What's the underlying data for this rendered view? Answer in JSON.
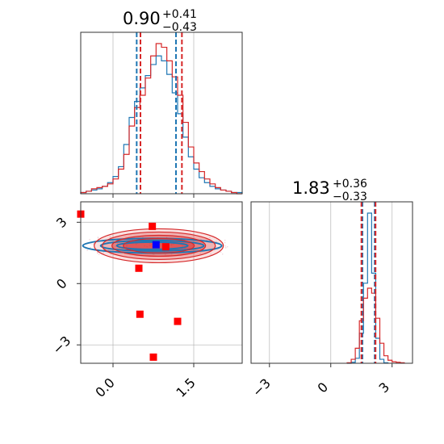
{
  "chart_data": [
    {
      "type": "histogram",
      "panel": "top-left",
      "title": {
        "value": "0.90",
        "upper": "+0.41",
        "lower": "−0.43"
      },
      "xlim": [
        -0.6,
        2.4
      ],
      "x_ticks": [
        0.0,
        1.5
      ],
      "grid": true,
      "colors": {
        "series_a": "#1f77b4",
        "series_b": "#d62728"
      },
      "quantile_lines": {
        "series_a": [
          0.44,
          1.17
        ],
        "series_b": [
          0.51,
          1.28
        ]
      },
      "series": [
        {
          "color_key": "series_a",
          "bin_edges": [
            -0.6,
            -0.5,
            -0.4,
            -0.3,
            -0.2,
            -0.1,
            0.0,
            0.1,
            0.2,
            0.3,
            0.4,
            0.5,
            0.6,
            0.7,
            0.8,
            0.9,
            1.0,
            1.1,
            1.2,
            1.3,
            1.4,
            1.5,
            1.6,
            1.7,
            1.8,
            1.9,
            2.0,
            2.1,
            2.2,
            2.3,
            2.4
          ],
          "counts": [
            1,
            2,
            3,
            4,
            6,
            9,
            14,
            22,
            40,
            62,
            75,
            86,
            96,
            105,
            112,
            108,
            97,
            82,
            65,
            46,
            30,
            20,
            13,
            9,
            6,
            4,
            3,
            2,
            1,
            1
          ]
        },
        {
          "color_key": "series_b",
          "bin_edges": [
            -0.6,
            -0.5,
            -0.4,
            -0.3,
            -0.2,
            -0.1,
            0.0,
            0.1,
            0.2,
            0.3,
            0.4,
            0.5,
            0.6,
            0.7,
            0.8,
            0.9,
            1.0,
            1.1,
            1.2,
            1.3,
            1.4,
            1.5,
            1.6,
            1.7,
            1.8,
            1.9,
            2.0,
            2.1,
            2.2,
            2.3,
            2.4
          ],
          "counts": [
            1,
            2,
            4,
            5,
            6,
            8,
            12,
            20,
            32,
            55,
            70,
            80,
            94,
            112,
            122,
            119,
            108,
            95,
            80,
            58,
            38,
            25,
            18,
            12,
            8,
            5,
            3,
            2,
            1,
            0
          ]
        }
      ]
    },
    {
      "type": "scatter",
      "panel": "bottom-left",
      "xlim": [
        -0.6,
        2.4
      ],
      "ylim": [
        -3.9,
        4.0
      ],
      "x_ticks": [
        0.0,
        1.5
      ],
      "y_ticks": [
        -3,
        0,
        3
      ],
      "x_tick_labels": [
        "0.0",
        "1.5"
      ],
      "y_tick_labels": [
        "−3",
        "0",
        "3"
      ],
      "grid": true,
      "density_contours": {
        "center": [
          0.85,
          1.85
        ],
        "colors": {
          "fill": "#d62728",
          "line_a": "#1f77b4",
          "line_b": "#d62728"
        }
      },
      "red_markers": [
        {
          "x": -0.6,
          "y": 3.4
        },
        {
          "x": 0.73,
          "y": 2.8
        },
        {
          "x": 0.98,
          "y": 1.8
        },
        {
          "x": 0.48,
          "y": 0.75
        },
        {
          "x": 0.5,
          "y": -1.5
        },
        {
          "x": 1.2,
          "y": -1.85
        },
        {
          "x": 0.75,
          "y": -3.6
        }
      ],
      "blue_marker": {
        "x": 0.8,
        "y": 1.9
      },
      "marker_colors": {
        "red": "#ff0000",
        "blue": "#0000ff"
      }
    },
    {
      "type": "histogram",
      "panel": "bottom-right",
      "title": {
        "value": "1.83",
        "upper": "+0.36",
        "lower": "−0.33"
      },
      "xlim": [
        -3.9,
        4.0
      ],
      "x_ticks": [
        -3,
        0,
        3
      ],
      "x_tick_labels": [
        "−3",
        "0",
        "3"
      ],
      "grid": true,
      "colors": {
        "series_a": "#1f77b4",
        "series_b": "#d62728"
      },
      "quantile_lines": {
        "series_a": [
          1.55,
          2.15
        ],
        "series_b": [
          1.5,
          2.19
        ]
      },
      "series": [
        {
          "color_key": "series_a",
          "bin_edges": [
            0.8,
            1.0,
            1.2,
            1.4,
            1.6,
            1.8,
            2.0,
            2.2,
            2.4,
            2.6,
            2.8
          ],
          "counts": [
            0,
            2,
            10,
            60,
            160,
            300,
            180,
            50,
            8,
            1
          ]
        },
        {
          "color_key": "series_b",
          "bin_edges": [
            0.8,
            1.0,
            1.2,
            1.4,
            1.6,
            1.8,
            2.0,
            2.2,
            2.4,
            2.6,
            2.8,
            3.0,
            3.2,
            3.4,
            3.6
          ],
          "counts": [
            1,
            8,
            30,
            85,
            130,
            150,
            140,
            90,
            40,
            15,
            6,
            3,
            2,
            1
          ]
        }
      ]
    }
  ]
}
